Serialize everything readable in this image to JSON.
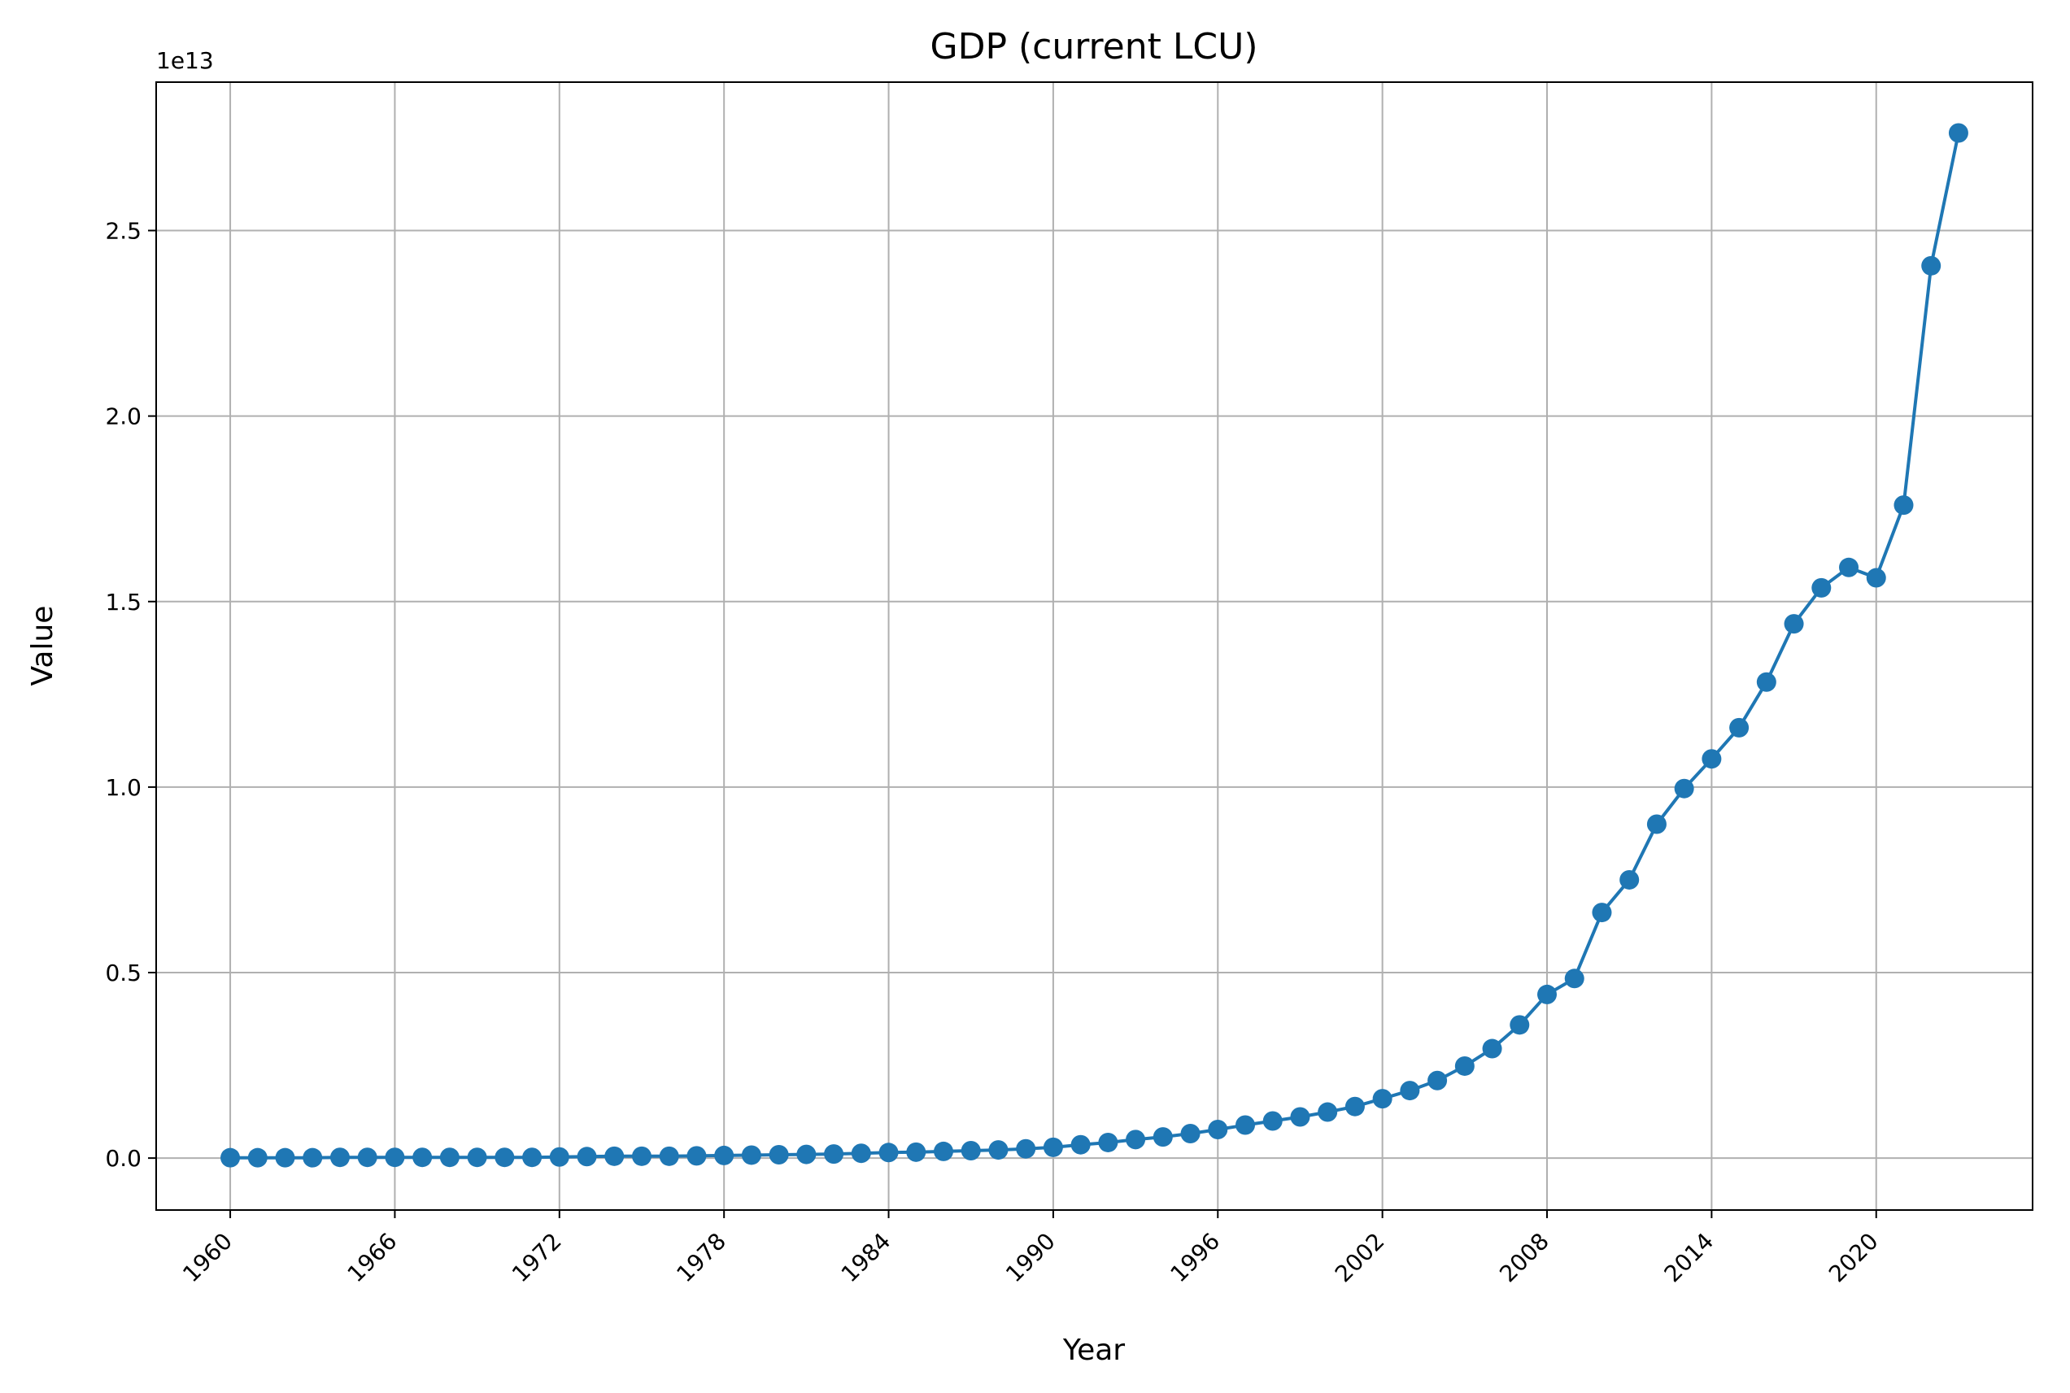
{
  "chart_data": {
    "type": "line",
    "title": "GDP (current LCU)",
    "xlabel": "Year",
    "ylabel": "Value",
    "y_scale_label": "1e13",
    "y_scale": 10000000000000.0,
    "xlim": [
      1957.3,
      2025.7
    ],
    "ylim": [
      -0.14,
      2.9
    ],
    "x_ticks": [
      1960,
      1966,
      1972,
      1978,
      1984,
      1990,
      1996,
      2002,
      2008,
      2014,
      2020
    ],
    "x_tick_labels": [
      "1960",
      "1966",
      "1972",
      "1978",
      "1984",
      "1990",
      "1996",
      "2002",
      "2008",
      "2014",
      "2020"
    ],
    "y_ticks": [
      0.0,
      0.5,
      1.0,
      1.5,
      2.0,
      2.5
    ],
    "y_tick_labels": [
      "0.0",
      "0.5",
      "1.0",
      "1.5",
      "2.0",
      "2.5"
    ],
    "grid": true,
    "color": "#1f77b4",
    "x": [
      1960,
      1961,
      1962,
      1963,
      1964,
      1965,
      1966,
      1967,
      1968,
      1969,
      1970,
      1971,
      1972,
      1973,
      1974,
      1975,
      1976,
      1977,
      1978,
      1979,
      1980,
      1981,
      1982,
      1983,
      1984,
      1985,
      1986,
      1987,
      1988,
      1989,
      1990,
      1991,
      1992,
      1993,
      1994,
      1995,
      1996,
      1997,
      1998,
      1999,
      2000,
      2001,
      2002,
      2003,
      2004,
      2005,
      2006,
      2007,
      2008,
      2009,
      2010,
      2011,
      2012,
      2013,
      2014,
      2015,
      2016,
      2017,
      2018,
      2019,
      2020,
      2021,
      2022,
      2023
    ],
    "values": [
      0.001,
      0.001,
      0.001,
      0.001,
      0.002,
      0.002,
      0.002,
      0.002,
      0.002,
      0.002,
      0.002,
      0.002,
      0.003,
      0.004,
      0.005,
      0.005,
      0.005,
      0.006,
      0.007,
      0.008,
      0.009,
      0.01,
      0.011,
      0.013,
      0.015,
      0.016,
      0.018,
      0.02,
      0.022,
      0.025,
      0.029,
      0.036,
      0.042,
      0.05,
      0.057,
      0.066,
      0.077,
      0.089,
      0.1,
      0.111,
      0.124,
      0.139,
      0.16,
      0.182,
      0.209,
      0.248,
      0.295,
      0.359,
      0.441,
      0.484,
      0.662,
      0.75,
      0.9,
      0.996,
      1.076,
      1.16,
      1.283,
      1.44,
      1.537,
      1.592,
      1.564,
      1.76,
      2.405,
      2.763
    ]
  }
}
